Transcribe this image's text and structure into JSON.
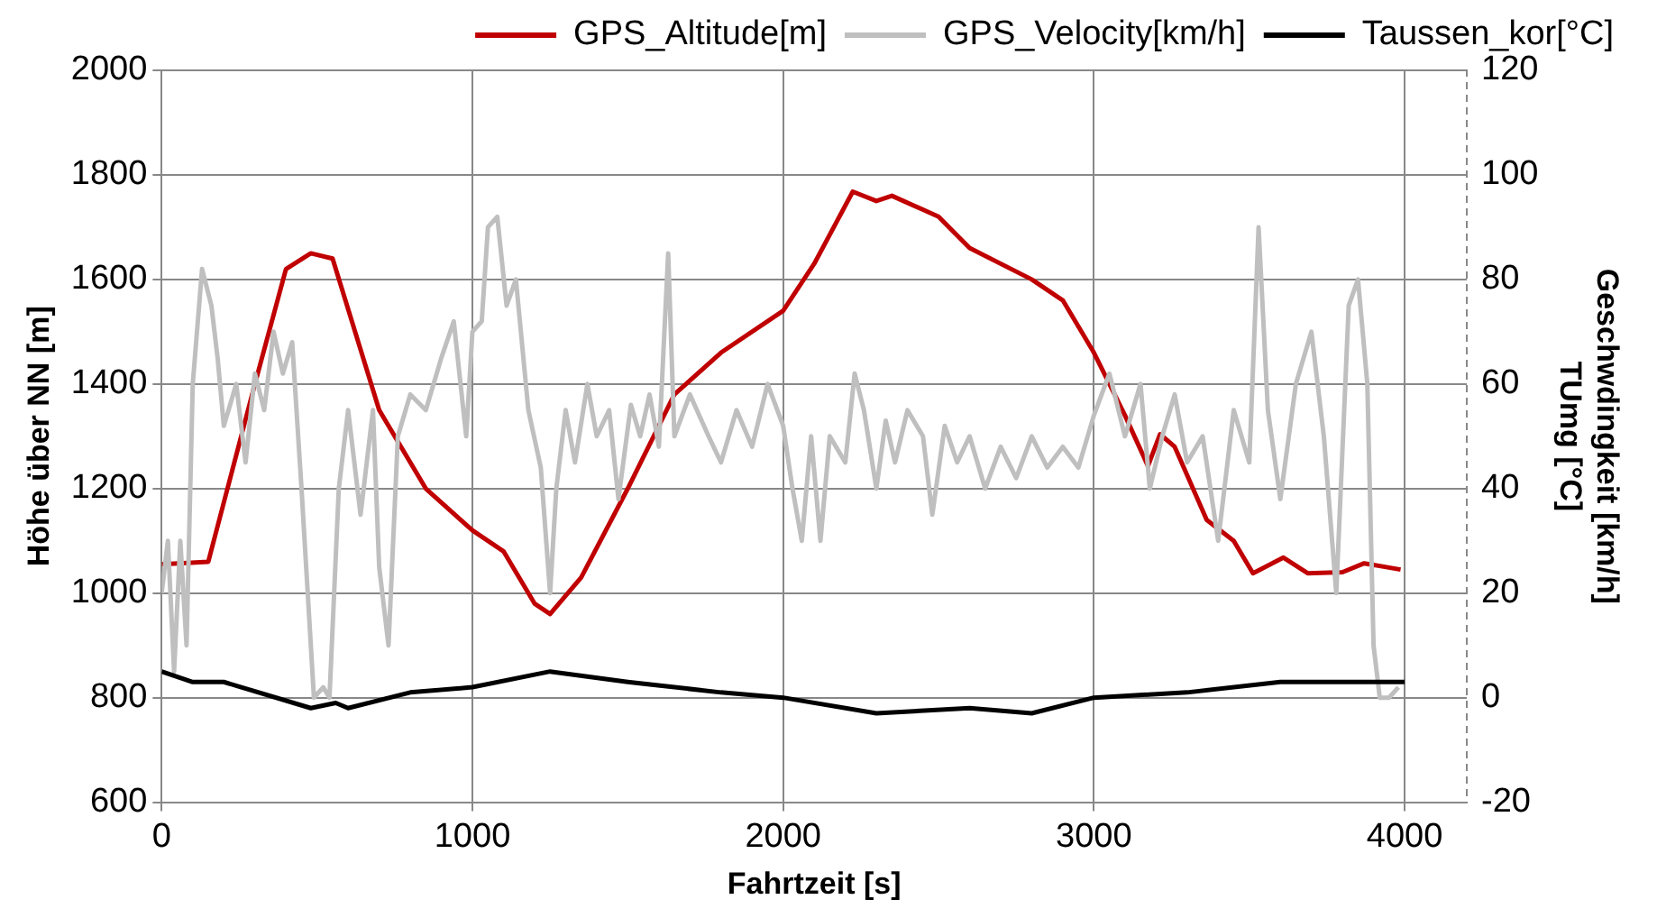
{
  "chart_data": {
    "type": "line",
    "xlabel": "Fahrtzeit [s]",
    "ylabel": "Höhe über NN [m]",
    "y2label": "Geschwdingkeit [km/h]\nTUmg [°C]",
    "xlim": [
      0,
      4200
    ],
    "xticks": [
      0,
      1000,
      2000,
      3000,
      4000
    ],
    "ylim": [
      600,
      2000
    ],
    "yticks": [
      600,
      800,
      1000,
      1200,
      1400,
      1600,
      1800,
      2000
    ],
    "y2lim": [
      -20,
      120
    ],
    "y2ticks": [
      -20,
      0,
      20,
      40,
      60,
      80,
      100,
      120
    ],
    "grid": true,
    "legend": "top",
    "marker": "none",
    "line_style": "solid",
    "series": [
      {
        "name": "GPS_Altitude[m]",
        "color": "#c00000",
        "x": [
          0,
          150,
          300,
          400,
          480,
          550,
          700,
          850,
          1000,
          1100,
          1200,
          1250,
          1350,
          1500,
          1650,
          1800,
          2000,
          2100,
          2224,
          2300,
          2350,
          2500,
          2600,
          2800,
          2900,
          3000,
          3100,
          3174,
          3213,
          3260,
          3363,
          3450,
          3512,
          3610,
          3688,
          3800,
          3870,
          3987
        ],
        "values": [
          1055,
          1060,
          1400,
          1620,
          1650,
          1640,
          1350,
          1200,
          1120,
          1080,
          980,
          960,
          1030,
          1200,
          1380,
          1460,
          1540,
          1630,
          1768,
          1750,
          1760,
          1720,
          1660,
          1600,
          1560,
          1460,
          1340,
          1243,
          1304,
          1280,
          1140,
          1100,
          1038,
          1068,
          1038,
          1040,
          1057,
          1045
        ]
      },
      {
        "name": "GPS_Velocity[km/h]",
        "color": "#bfbfbf",
        "axis": "y2",
        "x": [
          0,
          20,
          40,
          60,
          80,
          100,
          130,
          160,
          180,
          200,
          240,
          270,
          300,
          330,
          360,
          390,
          420,
          450,
          470,
          490,
          520,
          540,
          570,
          600,
          640,
          680,
          700,
          730,
          760,
          800,
          850,
          900,
          940,
          980,
          1000,
          1030,
          1050,
          1080,
          1110,
          1140,
          1180,
          1220,
          1250,
          1270,
          1300,
          1330,
          1370,
          1400,
          1440,
          1470,
          1510,
          1540,
          1570,
          1600,
          1630,
          1650,
          1700,
          1760,
          1800,
          1850,
          1900,
          1950,
          2000,
          2030,
          2060,
          2090,
          2120,
          2150,
          2200,
          2230,
          2260,
          2300,
          2330,
          2360,
          2400,
          2450,
          2480,
          2520,
          2560,
          2600,
          2650,
          2700,
          2750,
          2800,
          2850,
          2900,
          2950,
          3000,
          3050,
          3100,
          3150,
          3180,
          3220,
          3260,
          3300,
          3350,
          3400,
          3450,
          3500,
          3530,
          3560,
          3600,
          3650,
          3700,
          3740,
          3780,
          3820,
          3850,
          3880,
          3900,
          3920,
          3950,
          3980
        ],
        "values": [
          20,
          30,
          5,
          30,
          10,
          60,
          82,
          75,
          65,
          52,
          60,
          45,
          62,
          55,
          70,
          62,
          68,
          40,
          20,
          0,
          2,
          0,
          40,
          55,
          35,
          55,
          25,
          10,
          50,
          58,
          55,
          65,
          72,
          50,
          70,
          72,
          90,
          92,
          75,
          80,
          55,
          44,
          20,
          40,
          55,
          45,
          60,
          50,
          55,
          38,
          56,
          50,
          58,
          48,
          85,
          50,
          58,
          50,
          45,
          55,
          48,
          60,
          52,
          40,
          30,
          50,
          30,
          50,
          45,
          62,
          55,
          40,
          53,
          45,
          55,
          50,
          35,
          52,
          45,
          50,
          40,
          48,
          42,
          50,
          44,
          48,
          44,
          54,
          62,
          50,
          60,
          40,
          50,
          58,
          45,
          50,
          30,
          55,
          45,
          90,
          55,
          38,
          60,
          70,
          50,
          20,
          75,
          80,
          60,
          10,
          0,
          0,
          2
        ]
      },
      {
        "name": "Taussen_kor[°C]",
        "color": "#000000",
        "axis": "y2",
        "x": [
          0,
          100,
          200,
          480,
          560,
          600,
          800,
          1000,
          1250,
          1500,
          1800,
          2000,
          2300,
          2600,
          2800,
          3000,
          3300,
          3600,
          3800,
          4000
        ],
        "values": [
          5,
          3,
          3,
          -2,
          -1,
          -2,
          1,
          2,
          5,
          3,
          1,
          0,
          -3,
          -2,
          -3,
          0,
          1,
          3,
          3,
          3
        ]
      }
    ]
  }
}
